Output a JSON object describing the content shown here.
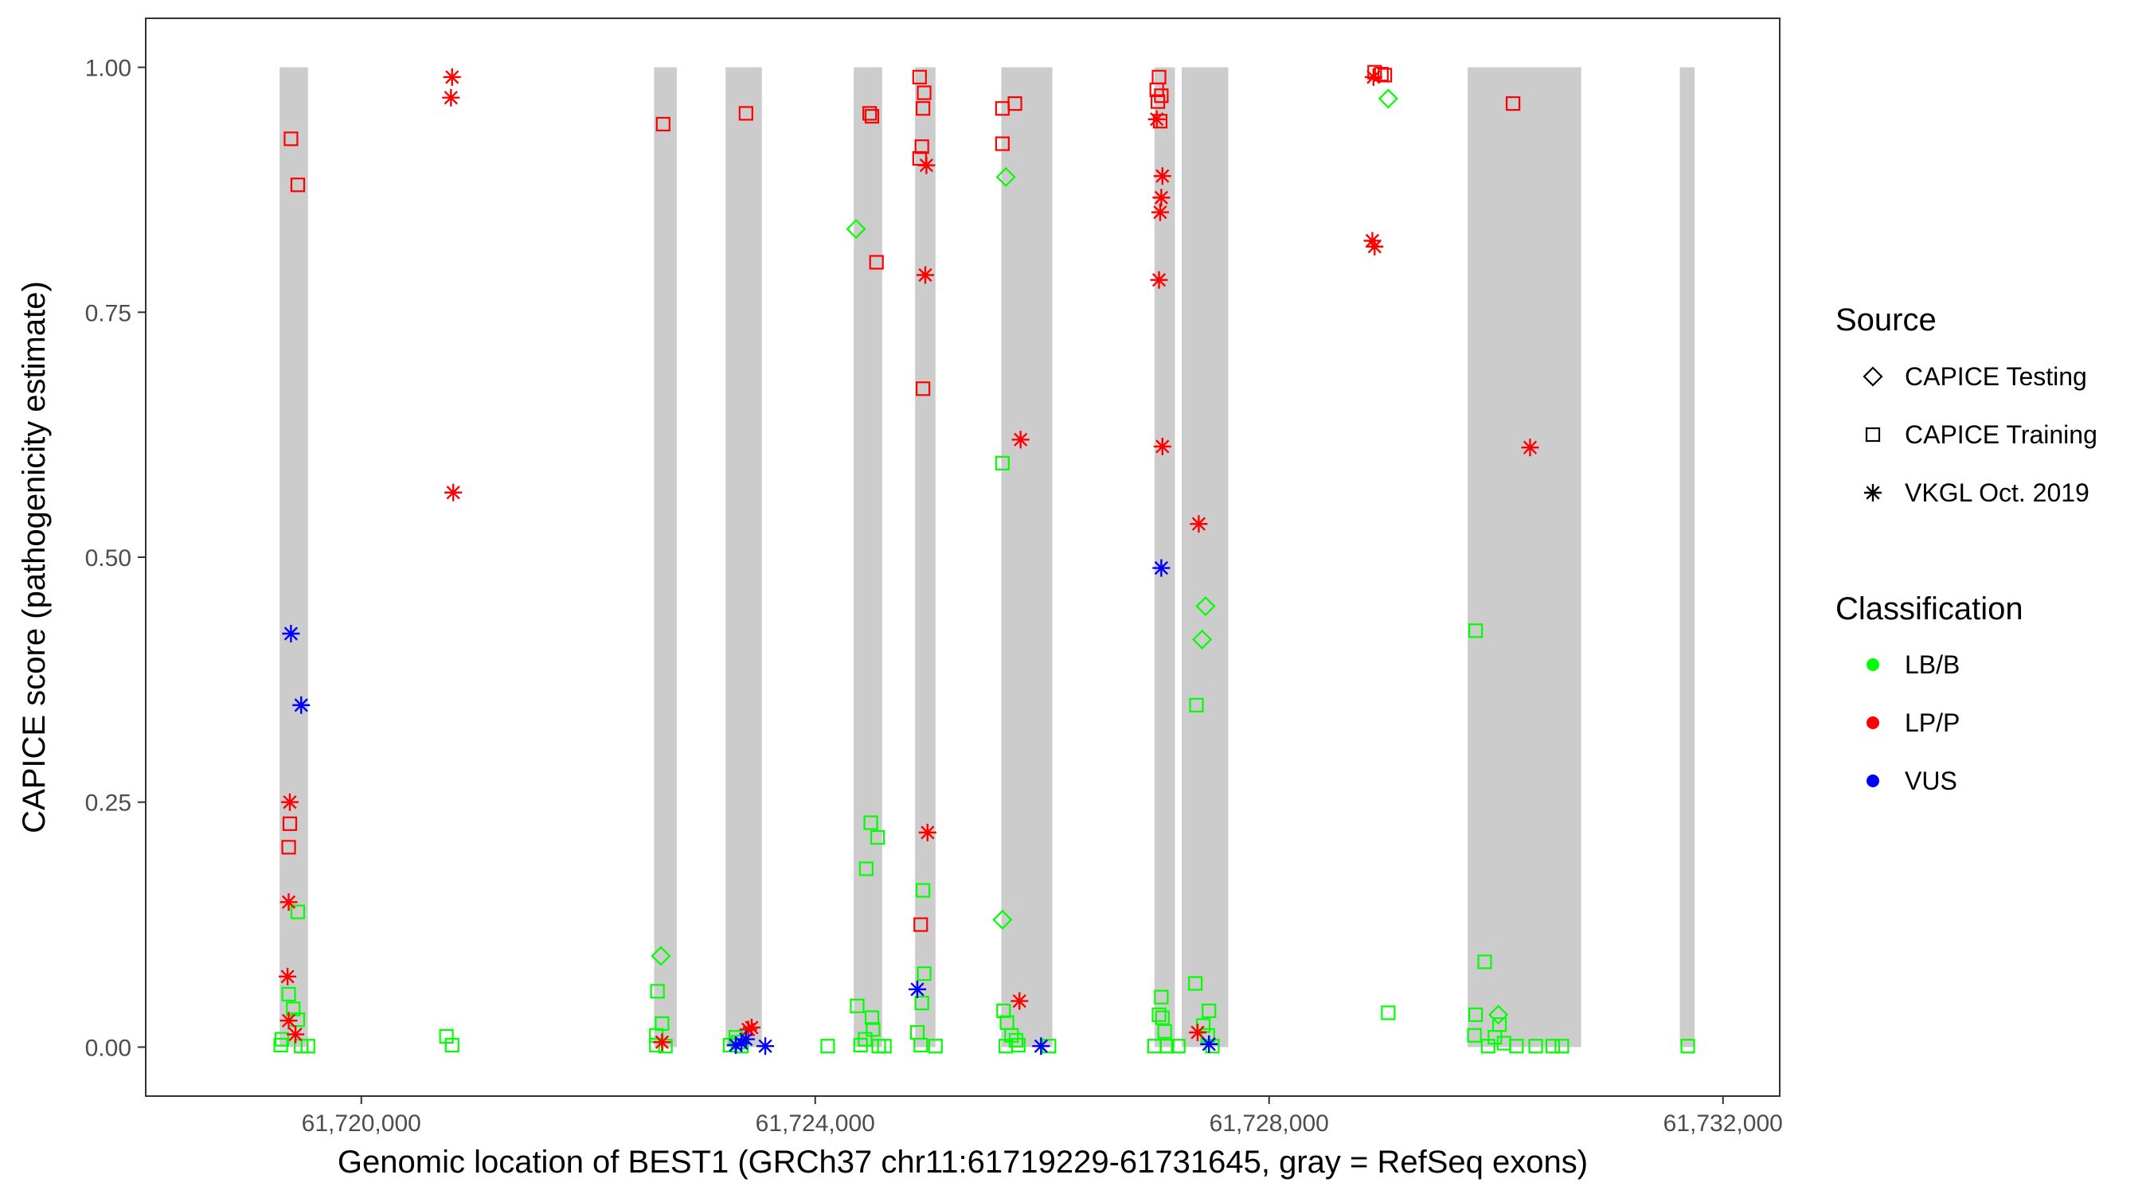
{
  "chart_data": {
    "type": "scatter",
    "title": "",
    "xlabel": "Genomic location of BEST1 (GRCh37 chr11:61719229-61731645, gray = RefSeq exons)",
    "ylabel": "CAPICE score (pathogenicity estimate)",
    "xlim": [
      61718100,
      61732500
    ],
    "ylim": [
      -0.05,
      1.05
    ],
    "x_ticks": [
      61720000,
      61724000,
      61728000,
      61732000
    ],
    "x_tick_labels": [
      "61,720,000",
      "61,724,000",
      "61,728,000",
      "61,732,000"
    ],
    "y_ticks": [
      0,
      0.25,
      0.5,
      0.75,
      1
    ],
    "y_tick_labels": [
      "0.00",
      "0.25",
      "0.50",
      "0.75",
      "1.00"
    ],
    "grid": false,
    "exon_color": "#cccccc",
    "exons": [
      [
        61719280,
        61719530
      ],
      [
        61722580,
        61722780
      ],
      [
        61723210,
        61723530
      ],
      [
        61724340,
        61724590
      ],
      [
        61724880,
        61725060
      ],
      [
        61725640,
        61726090
      ],
      [
        61726990,
        61727170
      ],
      [
        61727230,
        61727640
      ],
      [
        61729750,
        61730750
      ],
      [
        61731620,
        61731750
      ]
    ],
    "legend": {
      "placement": "right",
      "source_title": "Source",
      "source_items": [
        {
          "label": "CAPICE Testing",
          "shape": "diamond"
        },
        {
          "label": "CAPICE Training",
          "shape": "square"
        },
        {
          "label": "VKGL Oct. 2019",
          "shape": "asterisk"
        }
      ],
      "class_title": "Classification",
      "class_items": [
        {
          "label": "LB/B",
          "color": "#00ff00"
        },
        {
          "label": "LP/P",
          "color": "#ff0000"
        },
        {
          "label": "VUS",
          "color": "#0000ff"
        }
      ]
    },
    "series": [
      {
        "shape": "diamond",
        "class": "LB/B",
        "points": [
          [
            61722640,
            0.093
          ],
          [
            61724360,
            0.835
          ],
          [
            61725680,
            0.888
          ],
          [
            61725650,
            0.13
          ],
          [
            61727440,
            0.45
          ],
          [
            61727410,
            0.416
          ],
          [
            61729050,
            0.968
          ],
          [
            61730020,
            0.033
          ]
        ]
      },
      {
        "shape": "square",
        "class": "LP/P",
        "points": [
          [
            61719380,
            0.927
          ],
          [
            61719440,
            0.88
          ],
          [
            61719370,
            0.228
          ],
          [
            61719360,
            0.204
          ],
          [
            61722660,
            0.942
          ],
          [
            61723390,
            0.953
          ],
          [
            61724480,
            0.953
          ],
          [
            61724500,
            0.95
          ],
          [
            61724540,
            0.801
          ],
          [
            61724920,
            0.99
          ],
          [
            61724960,
            0.974
          ],
          [
            61724950,
            0.958
          ],
          [
            61724940,
            0.919
          ],
          [
            61724920,
            0.907
          ],
          [
            61724950,
            0.672
          ],
          [
            61724930,
            0.125
          ],
          [
            61725650,
            0.958
          ],
          [
            61725760,
            0.963
          ],
          [
            61725650,
            0.922
          ],
          [
            61727030,
            0.99
          ],
          [
            61727010,
            0.977
          ],
          [
            61727050,
            0.971
          ],
          [
            61727020,
            0.965
          ],
          [
            61727040,
            0.945
          ],
          [
            61728930,
            0.995
          ],
          [
            61728990,
            0.993
          ],
          [
            61729020,
            0.992
          ],
          [
            61730150,
            0.963
          ]
        ]
      },
      {
        "shape": "square",
        "class": "LB/B",
        "points": [
          [
            61719440,
            0.138
          ],
          [
            61719360,
            0.054
          ],
          [
            61719400,
            0.039
          ],
          [
            61719440,
            0.028
          ],
          [
            61719300,
            0.008
          ],
          [
            61719290,
            0.002
          ],
          [
            61719470,
            0.001
          ],
          [
            61719530,
            0.001
          ],
          [
            61720750,
            0.011
          ],
          [
            61720800,
            0.002
          ],
          [
            61722610,
            0.057
          ],
          [
            61722650,
            0.024
          ],
          [
            61722600,
            0.012
          ],
          [
            61722600,
            0.002
          ],
          [
            61722680,
            0.001
          ],
          [
            61723250,
            0.002
          ],
          [
            61723300,
            0.01
          ],
          [
            61723320,
            0.005
          ],
          [
            61723350,
            0.001
          ],
          [
            61724110,
            0.001
          ],
          [
            61724370,
            0.042
          ],
          [
            61724490,
            0.229
          ],
          [
            61724550,
            0.214
          ],
          [
            61724450,
            0.182
          ],
          [
            61724500,
            0.03
          ],
          [
            61724510,
            0.018
          ],
          [
            61724440,
            0.008
          ],
          [
            61724400,
            0.002
          ],
          [
            61724560,
            0.001
          ],
          [
            61724610,
            0.001
          ],
          [
            61724950,
            0.16
          ],
          [
            61724960,
            0.075
          ],
          [
            61724940,
            0.045
          ],
          [
            61724900,
            0.015
          ],
          [
            61724930,
            0.002
          ],
          [
            61725060,
            0.001
          ],
          [
            61725650,
            0.596
          ],
          [
            61725660,
            0.037
          ],
          [
            61725690,
            0.025
          ],
          [
            61725730,
            0.012
          ],
          [
            61725770,
            0.007
          ],
          [
            61725790,
            0.002
          ],
          [
            61725680,
            0.001
          ],
          [
            61726060,
            0.001
          ],
          [
            61727050,
            0.051
          ],
          [
            61727030,
            0.033
          ],
          [
            61727060,
            0.03
          ],
          [
            61727080,
            0.016
          ],
          [
            61726990,
            0.001
          ],
          [
            61727100,
            0.001
          ],
          [
            61727200,
            0.001
          ],
          [
            61727350,
            0.065
          ],
          [
            61727360,
            0.349
          ],
          [
            61727470,
            0.037
          ],
          [
            61727420,
            0.022
          ],
          [
            61727460,
            0.012
          ],
          [
            61727500,
            0.001
          ],
          [
            61729050,
            0.035
          ],
          [
            61729820,
            0.425
          ],
          [
            61729900,
            0.087
          ],
          [
            61729820,
            0.033
          ],
          [
            61730030,
            0.023
          ],
          [
            61729810,
            0.012
          ],
          [
            61729990,
            0.01
          ],
          [
            61730070,
            0.004
          ],
          [
            61729930,
            0.001
          ],
          [
            61730180,
            0.001
          ],
          [
            61730350,
            0.001
          ],
          [
            61730500,
            0.001
          ],
          [
            61730580,
            0.001
          ],
          [
            61731690,
            0.001
          ]
        ]
      },
      {
        "shape": "asterisk",
        "class": "LP/P",
        "points": [
          [
            61720800,
            0.99
          ],
          [
            61720790,
            0.969
          ],
          [
            61720810,
            0.566
          ],
          [
            61719370,
            0.25
          ],
          [
            61719360,
            0.148
          ],
          [
            61719350,
            0.072
          ],
          [
            61719360,
            0.027
          ],
          [
            61719420,
            0.013
          ],
          [
            61722650,
            0.005
          ],
          [
            61723440,
            0.02
          ],
          [
            61723410,
            0.018
          ],
          [
            61724980,
            0.9
          ],
          [
            61724970,
            0.788
          ],
          [
            61724990,
            0.219
          ],
          [
            61725810,
            0.62
          ],
          [
            61725800,
            0.047
          ],
          [
            61727010,
            0.947
          ],
          [
            61727060,
            0.889
          ],
          [
            61727050,
            0.867
          ],
          [
            61727040,
            0.852
          ],
          [
            61727030,
            0.783
          ],
          [
            61727060,
            0.613
          ],
          [
            61727380,
            0.534
          ],
          [
            61727370,
            0.015
          ],
          [
            61728920,
            0.99
          ],
          [
            61728910,
            0.823
          ],
          [
            61728930,
            0.817
          ],
          [
            61730300,
            0.612
          ]
        ]
      },
      {
        "shape": "asterisk",
        "class": "VUS",
        "points": [
          [
            61719380,
            0.422
          ],
          [
            61719470,
            0.349
          ],
          [
            61723390,
            0.008
          ],
          [
            61723350,
            0.004
          ],
          [
            61723300,
            0.002
          ],
          [
            61723560,
            0.001
          ],
          [
            61724900,
            0.059
          ],
          [
            61725990,
            0.001
          ],
          [
            61727050,
            0.489
          ],
          [
            61727470,
            0.003
          ]
        ]
      }
    ]
  }
}
